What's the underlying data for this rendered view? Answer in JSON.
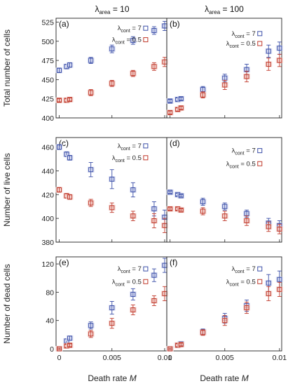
{
  "colors": {
    "blue": "#3b4fa8",
    "red": "#c0392b",
    "blue_fill": "#d9ddf3",
    "red_fill": "#f5d6d1"
  },
  "column_titles": [
    {
      "lambda": "λ",
      "sub": "area",
      "eq": " = 10"
    },
    {
      "lambda": "λ",
      "sub": "area",
      "eq": " = 100"
    }
  ],
  "x_axis_label": "Death rate M",
  "x_ticks": [
    "0",
    "0.005",
    "0.01"
  ],
  "legend": [
    {
      "lambda": "λ",
      "sub": "cont",
      "eq": " = 7"
    },
    {
      "lambda": "λ",
      "sub": "cont",
      "eq": " = 0.5"
    }
  ],
  "chart_data": [
    {
      "panel": "(a)",
      "type": "scatter",
      "ylabel": "Total number of cells",
      "ylim": [
        400,
        530
      ],
      "yticks": [
        "400",
        "425",
        "450",
        "475",
        "500",
        "525"
      ],
      "xlim": [
        -0.0003,
        0.0102
      ],
      "series": [
        {
          "name": "λcont = 7",
          "x": [
            0,
            0.0007,
            0.001,
            0.003,
            0.005,
            0.007,
            0.009,
            0.01
          ],
          "y": [
            462,
            467,
            469,
            475,
            490,
            501,
            514,
            520
          ],
          "err": [
            3,
            3,
            3,
            4,
            5,
            5,
            5,
            6
          ]
        },
        {
          "name": "λcont = 0.5",
          "x": [
            0,
            0.0007,
            0.001,
            0.003,
            0.005,
            0.007,
            0.009,
            0.01
          ],
          "y": [
            423,
            423,
            424,
            433,
            445,
            458,
            467,
            473
          ],
          "err": [
            2,
            2,
            2,
            4,
            4,
            4,
            5,
            6
          ]
        }
      ],
      "legend_values": [
        517,
        502
      ]
    },
    {
      "panel": "(b)",
      "type": "scatter",
      "ylabel": "",
      "ylim": [
        400,
        530
      ],
      "yticks": [],
      "xlim": [
        -0.0003,
        0.0102
      ],
      "series": [
        {
          "name": "λcont = 7",
          "x": [
            0,
            0.0007,
            0.001,
            0.003,
            0.005,
            0.007,
            0.009,
            0.01
          ],
          "y": [
            422,
            424,
            425,
            437,
            452,
            463,
            487,
            491
          ],
          "err": [
            2,
            2,
            2,
            4,
            5,
            7,
            8,
            8
          ]
        },
        {
          "name": "λcont = 0.5",
          "x": [
            0,
            0.0007,
            0.001,
            0.003,
            0.005,
            0.007,
            0.009,
            0.01
          ],
          "y": [
            407,
            411,
            413,
            430,
            443,
            454,
            470,
            475
          ],
          "err": [
            2,
            2,
            2,
            4,
            6,
            7,
            8,
            8
          ]
        }
      ],
      "legend_values": [
        510,
        497
      ]
    },
    {
      "panel": "(c)",
      "type": "scatter",
      "ylabel": "Number of live cells",
      "ylim": [
        380,
        468
      ],
      "yticks": [
        "380",
        "400",
        "420",
        "440",
        "460"
      ],
      "xlim": [
        -0.0003,
        0.0102
      ],
      "series": [
        {
          "name": "λcont = 7",
          "x": [
            0,
            0.0007,
            0.001,
            0.003,
            0.005,
            0.007,
            0.009,
            0.01
          ],
          "y": [
            460,
            454,
            451,
            441,
            433,
            424,
            408,
            401
          ],
          "err": [
            2,
            2,
            2,
            6,
            8,
            6,
            6,
            6
          ]
        },
        {
          "name": "λcont = 0.5",
          "x": [
            0,
            0.0007,
            0.001,
            0.003,
            0.005,
            0.007,
            0.009,
            0.01
          ],
          "y": [
            424,
            419,
            418,
            413,
            409,
            402,
            398,
            394
          ],
          "err": [
            2,
            2,
            2,
            3,
            4,
            4,
            6,
            6
          ]
        }
      ],
      "legend_values": [
        461,
        451
      ]
    },
    {
      "panel": "(d)",
      "type": "scatter",
      "ylabel": "",
      "ylim": [
        380,
        468
      ],
      "yticks": [],
      "xlim": [
        -0.0003,
        0.0102
      ],
      "series": [
        {
          "name": "λcont = 7",
          "x": [
            0,
            0.0007,
            0.001,
            0.003,
            0.005,
            0.007,
            0.009,
            0.01
          ],
          "y": [
            422,
            420,
            419,
            414,
            410,
            404,
            396,
            394
          ],
          "err": [
            1,
            1,
            1,
            3,
            3,
            3,
            4,
            4
          ]
        },
        {
          "name": "λcont = 0.5",
          "x": [
            0,
            0.0007,
            0.001,
            0.003,
            0.005,
            0.007,
            0.009,
            0.01
          ],
          "y": [
            408,
            408,
            407,
            406,
            402,
            398,
            393,
            391
          ],
          "err": [
            1,
            1,
            1,
            3,
            4,
            4,
            4,
            4
          ]
        }
      ],
      "legend_values": [
        457,
        446
      ]
    },
    {
      "panel": "(e)",
      "type": "scatter",
      "ylabel": "Number of dead cells",
      "ylim": [
        -3,
        130
      ],
      "yticks": [
        "0",
        "40",
        "80",
        "120"
      ],
      "ytick_values": [
        0,
        40,
        80,
        120
      ],
      "xlim": [
        -0.0003,
        0.0102
      ],
      "series": [
        {
          "name": "λcont = 7",
          "x": [
            0,
            0.0007,
            0.001,
            0.003,
            0.005,
            0.007,
            0.009,
            0.01
          ],
          "y": [
            0,
            11,
            15,
            33,
            58,
            77,
            104,
            118
          ],
          "err": [
            1,
            3,
            3,
            5,
            9,
            8,
            9,
            10
          ]
        },
        {
          "name": "λcont = 0.5",
          "x": [
            0,
            0.0007,
            0.001,
            0.003,
            0.005,
            0.007,
            0.009,
            0.01
          ],
          "y": [
            0,
            4,
            5,
            21,
            36,
            55,
            68,
            78
          ],
          "err": [
            1,
            2,
            2,
            5,
            7,
            7,
            7,
            10
          ]
        }
      ],
      "legend_values": [
        113,
        95
      ]
    },
    {
      "panel": "(f)",
      "type": "scatter",
      "ylabel": "",
      "ylim": [
        -3,
        130
      ],
      "yticks": [],
      "xlim": [
        -0.0003,
        0.0102
      ],
      "series": [
        {
          "name": "λcont = 7",
          "x": [
            0,
            0.0007,
            0.001,
            0.003,
            0.005,
            0.007,
            0.009,
            0.01
          ],
          "y": [
            0,
            5,
            7,
            24,
            43,
            61,
            93,
            98
          ],
          "err": [
            1,
            2,
            2,
            4,
            7,
            8,
            12,
            12
          ]
        },
        {
          "name": "λcont = 0.5",
          "x": [
            0,
            0.0007,
            0.001,
            0.003,
            0.005,
            0.007,
            0.009,
            0.01
          ],
          "y": [
            0,
            5,
            6,
            23,
            40,
            58,
            78,
            84
          ],
          "err": [
            1,
            2,
            2,
            4,
            7,
            8,
            10,
            10
          ]
        }
      ],
      "legend_values": [
        113,
        95
      ]
    }
  ]
}
